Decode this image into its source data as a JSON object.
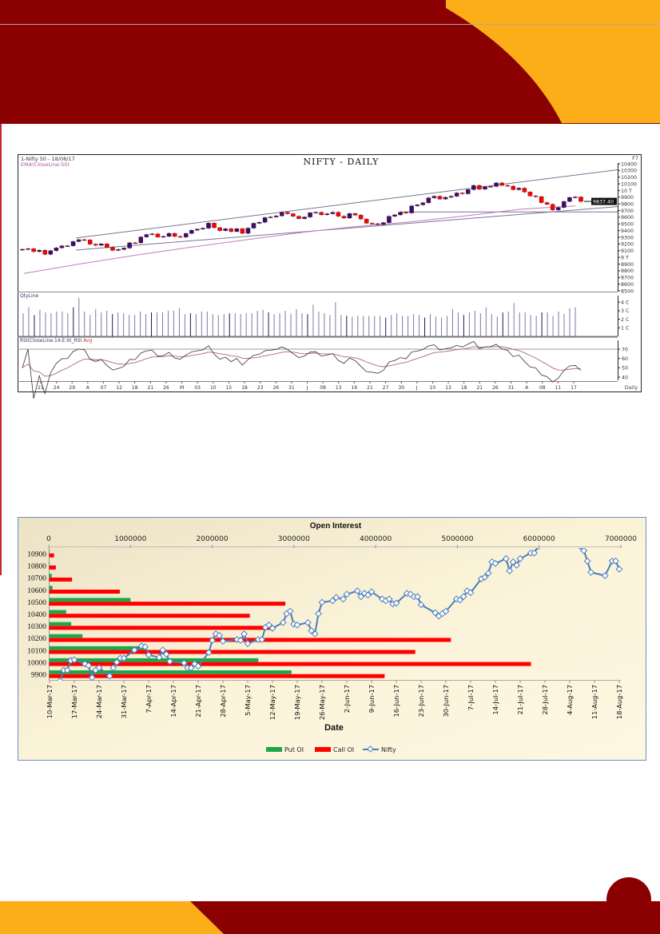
{
  "colors": {
    "maroon": "#8b0000",
    "gold": "#fbae17",
    "candle_down": "#ff0000",
    "candle_up": "#3b0d72",
    "ema": "#c07cc0",
    "put_oi": "#1aa84a",
    "call_oi": "#ff0000",
    "nifty_line": "#4a7ebb"
  },
  "chart_data": [
    {
      "type": "candlestick",
      "title": "NIFTY - DAILY",
      "symbol_label": "1-Nifty 50 - 18/08/17",
      "ema_label": "EMA(CloseLine:50)",
      "corner_label": "F7",
      "last_price_label": "9837.40",
      "period_label": "Daily",
      "ylim": [
        8500,
        10400
      ],
      "y_ticks": [
        "10400",
        "10300",
        "10200",
        "10100",
        "10 T",
        "9900",
        "9800",
        "9700",
        "9600",
        "9500",
        "9400",
        "9300",
        "9200",
        "9100",
        "9 T",
        "8900",
        "8800",
        "8700",
        "8600",
        "8500"
      ],
      "closes": [
        9121,
        9130,
        9086,
        9108,
        9045,
        9100,
        9143,
        9173,
        9174,
        9237,
        9265,
        9261,
        9198,
        9181,
        9203,
        9150,
        9105,
        9119,
        9140,
        9218,
        9217,
        9306,
        9342,
        9352,
        9305,
        9314,
        9360,
        9313,
        9304,
        9359,
        9407,
        9422,
        9437,
        9512,
        9445,
        9400,
        9428,
        9386,
        9429,
        9360,
        9438,
        9510,
        9525,
        9595,
        9605,
        9621,
        9675,
        9653,
        9616,
        9580,
        9604,
        9668,
        9675,
        9637,
        9653,
        9675,
        9616,
        9588,
        9657,
        9633,
        9574,
        9511,
        9504,
        9491,
        9520,
        9615,
        9636,
        9675,
        9665,
        9771,
        9786,
        9816,
        9891,
        9915,
        9873,
        9899,
        9915,
        9964,
        9952,
        10014,
        10077,
        10020,
        10057,
        10061,
        10114,
        10077,
        10066,
        10013,
        10036,
        9978,
        9920,
        9908,
        9820,
        9794,
        9710,
        9747,
        9837,
        9897,
        9904,
        9837.4
      ],
      "ema50": [
        8760,
        8900,
        9030,
        9150,
        9260,
        9370,
        9460,
        9530,
        9620,
        9720,
        9770
      ],
      "trendlines": [
        {
          "start": 9290,
          "end": 10310
        },
        {
          "start": 9110,
          "end": 9760
        },
        {
          "start": 9680,
          "end": 9680
        }
      ],
      "x_tick_labels": [
        "21",
        "24",
        "29",
        "A",
        "07",
        "12",
        "18",
        "21",
        "26",
        "M",
        "03",
        "10",
        "15",
        "18",
        "23",
        "26",
        "31",
        "J",
        "08",
        "13",
        "16",
        "21",
        "27",
        "30",
        "J",
        "10",
        "13",
        "18",
        "21",
        "26",
        "31",
        "A",
        "08",
        "11",
        "17"
      ],
      "volume": {
        "label": "QtyLine",
        "y_ticks": [
          "4 C",
          "3 C",
          "2 C",
          "1 C"
        ],
        "values": [
          2.7,
          3.4,
          2.5,
          3.1,
          2.8,
          2.7,
          2.9,
          2.9,
          2.7,
          3.4,
          4.5,
          2.9,
          2.5,
          3.2,
          2.8,
          3.0,
          2.6,
          2.8,
          2.7,
          2.5,
          2.5,
          2.9,
          2.6,
          2.8,
          2.8,
          2.8,
          3.0,
          3.0,
          3.3,
          2.6,
          2.7,
          2.6,
          2.9,
          2.9,
          2.6,
          2.5,
          2.6,
          2.7,
          2.7,
          2.6,
          2.7,
          2.7,
          3.0,
          3.1,
          2.8,
          2.6,
          2.7,
          3.0,
          2.6,
          3.2,
          2.7,
          2.6,
          3.7,
          2.9,
          2.7,
          2.5,
          4.0,
          2.5,
          2.4,
          2.3,
          2.4,
          2.4,
          2.4,
          2.4,
          2.4,
          2.2,
          2.5,
          2.7,
          2.4,
          2.4,
          2.6,
          2.5,
          2.2,
          2.6,
          2.3,
          2.2,
          2.4,
          3.2,
          2.8,
          2.5,
          2.8,
          3.0,
          2.7,
          3.4,
          2.6,
          2.3,
          2.8,
          2.9,
          3.9,
          2.8,
          2.8,
          2.5,
          2.4,
          2.8,
          2.8,
          2.4,
          2.9,
          2.6,
          3.3,
          3.4
        ]
      },
      "rsi": {
        "label": "RSI(CloseLine:14:E:9)_RSI",
        "avg_label": "Avg",
        "y_ticks": [
          70,
          60,
          50,
          40
        ],
        "overbought": 70,
        "ylim": [
          35,
          82
        ]
      }
    },
    {
      "type": "bar+line",
      "title": "Open Interest",
      "xlabel": "Date",
      "x_top_ticks": [
        "0",
        "1000000",
        "2000000",
        "3000000",
        "4000000",
        "5000000",
        "6000000",
        "7000000"
      ],
      "oi_range": [
        0,
        7000000
      ],
      "strikes": [
        "10900",
        "10800",
        "10700",
        "10600",
        "10500",
        "10400",
        "10300",
        "10200",
        "10100",
        "10000",
        "9900"
      ],
      "series": [
        {
          "name": "Put OI",
          "values": [
            5000,
            5000,
            32000,
            42000,
            995000,
            208000,
            270000,
            408000,
            1165000,
            2560000,
            2965000
          ]
        },
        {
          "name": "Call OI",
          "values": [
            60000,
            82000,
            280000,
            865000,
            2890000,
            2455000,
            2720000,
            4915000,
            4480000,
            5895000,
            4105000
          ]
        }
      ],
      "date_labels": [
        "10-Mar-17",
        "17-Mar-17",
        "24-Mar-17",
        "31-Mar-17",
        "7-Apr-17",
        "14-Apr-17",
        "21-Apr-17",
        "28-Apr-17",
        "5-May-17",
        "12-May-17",
        "19-May-17",
        "26-May-17",
        "2-Jun-17",
        "9-Jun-17",
        "16-Jun-17",
        "23-Jun-17",
        "30-Jun-17",
        "7-Jul-17",
        "14-Jul-17",
        "21-Jul-17",
        "28-Jul-17",
        "4-Aug-17",
        "11-Aug-17",
        "18-Aug-17"
      ],
      "nifty": {
        "name": "Nifty",
        "segments": [
          [
            [
              "2017-03-10",
              9780
            ],
            [
              "2017-03-13",
              9846
            ],
            [
              "2017-03-14",
              9934
            ],
            [
              "2017-03-15",
              9934
            ],
            [
              "2017-03-16",
              10014
            ],
            [
              "2017-03-17",
              10020
            ],
            [
              "2017-03-20",
              9987
            ],
            [
              "2017-03-21",
              9974
            ],
            [
              "2017-03-22",
              9873
            ],
            [
              "2017-03-23",
              9934
            ],
            [
              "2017-03-24",
              9954
            ],
            [
              "2017-03-27",
              9886
            ],
            [
              "2017-03-28",
              9954
            ],
            [
              "2017-03-29",
              10000
            ],
            [
              "2017-03-30",
              10034
            ],
            [
              "2017-03-31",
              10034
            ],
            [
              "2017-04-03",
              10101
            ],
            [
              "2017-04-05",
              10134
            ],
            [
              "2017-04-06",
              10128
            ],
            [
              "2017-04-07",
              10061
            ],
            [
              "2017-04-10",
              10040
            ],
            [
              "2017-04-11",
              10101
            ],
            [
              "2017-04-12",
              10067
            ],
            [
              "2017-04-13",
              10007
            ],
            [
              "2017-04-17",
              9994
            ],
            [
              "2017-04-18",
              9954
            ],
            [
              "2017-04-19",
              9954
            ],
            [
              "2017-04-20",
              9987
            ],
            [
              "2017-04-21",
              9967
            ],
            [
              "2017-04-24",
              10081
            ],
            [
              "2017-04-25",
              10182
            ],
            [
              "2017-04-26",
              10235
            ],
            [
              "2017-04-27",
              10222
            ],
            [
              "2017-04-28",
              10175
            ],
            [
              "2017-05-02",
              10188
            ],
            [
              "2017-05-03",
              10182
            ],
            [
              "2017-05-04",
              10235
            ],
            [
              "2017-05-05",
              10155
            ],
            [
              "2017-05-08",
              10188
            ],
            [
              "2017-05-09",
              10188
            ],
            [
              "2017-05-10",
              10289
            ],
            [
              "2017-05-11",
              10309
            ],
            [
              "2017-05-12",
              10282
            ],
            [
              "2017-05-15",
              10329
            ],
            [
              "2017-05-16",
              10403
            ],
            [
              "2017-05-17",
              10423
            ],
            [
              "2017-05-18",
              10316
            ],
            [
              "2017-05-19",
              10309
            ],
            [
              "2017-05-22",
              10329
            ],
            [
              "2017-05-23",
              10262
            ],
            [
              "2017-05-24",
              10235
            ],
            [
              "2017-05-25",
              10403
            ],
            [
              "2017-05-26",
              10497
            ],
            [
              "2017-05-29",
              10510
            ],
            [
              "2017-05-30",
              10537
            ],
            [
              "2017-06-01",
              10524
            ],
            [
              "2017-06-02",
              10564
            ],
            [
              "2017-06-05",
              10591
            ],
            [
              "2017-06-06",
              10544
            ],
            [
              "2017-06-07",
              10571
            ],
            [
              "2017-06-08",
              10557
            ],
            [
              "2017-06-09",
              10584
            ],
            [
              "2017-06-12",
              10524
            ],
            [
              "2017-06-13",
              10510
            ],
            [
              "2017-06-14",
              10524
            ],
            [
              "2017-06-15",
              10484
            ],
            [
              "2017-06-16",
              10490
            ],
            [
              "2017-06-19",
              10571
            ],
            [
              "2017-06-20",
              10564
            ],
            [
              "2017-06-21",
              10544
            ],
            [
              "2017-06-22",
              10544
            ],
            [
              "2017-06-23",
              10477
            ],
            [
              "2017-06-27",
              10410
            ],
            [
              "2017-06-28",
              10383
            ],
            [
              "2017-06-29",
              10403
            ],
            [
              "2017-06-30",
              10423
            ],
            [
              "2017-07-03",
              10524
            ],
            [
              "2017-07-04",
              10517
            ],
            [
              "2017-07-05",
              10544
            ],
            [
              "2017-07-06",
              10591
            ],
            [
              "2017-07-07",
              10577
            ],
            [
              "2017-07-10",
              10691
            ],
            [
              "2017-07-11",
              10705
            ],
            [
              "2017-07-12",
              10738
            ],
            [
              "2017-07-13",
              10832
            ],
            [
              "2017-07-14",
              10819
            ],
            [
              "2017-07-17",
              10859
            ],
            [
              "2017-07-18",
              10758
            ],
            [
              "2017-07-19",
              10832
            ],
            [
              "2017-07-20",
              10805
            ],
            [
              "2017-07-21",
              10859
            ],
            [
              "2017-07-24",
              10906
            ],
            [
              "2017-07-25",
              10906
            ],
            [
              "2017-07-26",
              10960
            ]
          ],
          [
            [
              "2017-08-07",
              10960
            ],
            [
              "2017-08-08",
              10926
            ],
            [
              "2017-08-09",
              10839
            ],
            [
              "2017-08-10",
              10745
            ],
            [
              "2017-08-14",
              10718
            ],
            [
              "2017-08-16",
              10839
            ],
            [
              "2017-08-17",
              10839
            ],
            [
              "2017-08-18",
              10772
            ]
          ]
        ]
      },
      "legend": [
        "Put OI",
        "Call OI",
        "Nifty"
      ],
      "legend_position": "bottom"
    }
  ]
}
